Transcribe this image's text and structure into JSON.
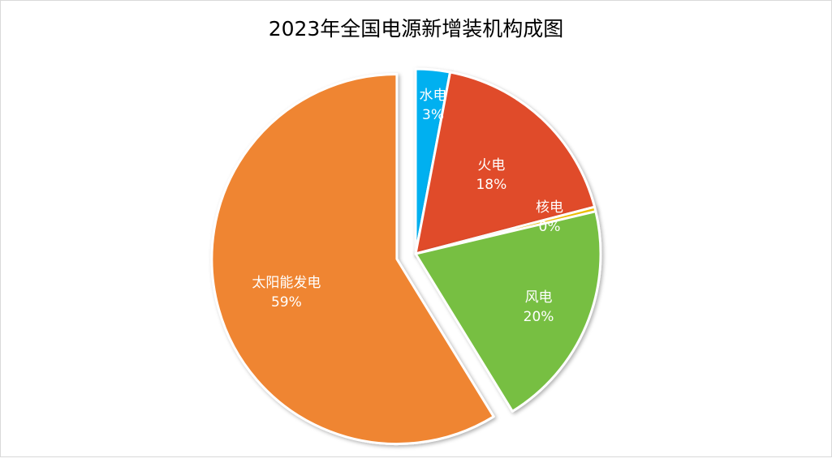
{
  "chart_data": {
    "type": "pie",
    "title": "2023年全国电源新增装机构成图",
    "slices": [
      {
        "name": "水电",
        "value": 3,
        "percent_label": "3%",
        "color": "#00b0f0"
      },
      {
        "name": "火电",
        "value": 18,
        "percent_label": "18%",
        "color": "#e04b2b"
      },
      {
        "name": "核电",
        "value": 0.4,
        "percent_label": "0%",
        "color": "#f0c000"
      },
      {
        "name": "风电",
        "value": 20,
        "percent_label": "20%",
        "color": "#77bf42"
      },
      {
        "name": "太阳能发电",
        "value": 59,
        "percent_label": "59%",
        "color": "#ef8532"
      }
    ],
    "exploded_slice": "太阳能发电",
    "legend": "none"
  }
}
